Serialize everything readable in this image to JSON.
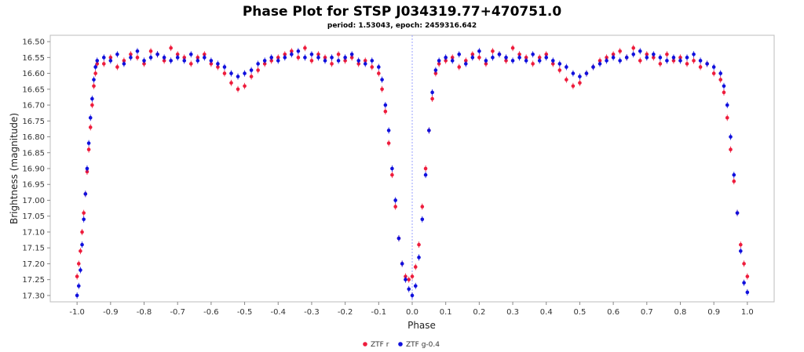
{
  "chart_data": {
    "type": "scatter",
    "title": "Phase Plot for STSP J034319.77+470751.0",
    "subtitle": "period: 1.53043, epoch: 2459316.642",
    "xlabel": "Phase",
    "ylabel": "Brightness (magnitude)",
    "xlim": [
      -1.08,
      1.08
    ],
    "ylim": [
      16.48,
      17.32
    ],
    "y_inverted": true,
    "xticks": [
      "-1.0",
      "-0.9",
      "-0.8",
      "-0.7",
      "-0.6",
      "-0.5",
      "-0.4",
      "-0.3",
      "-0.2",
      "-0.1",
      "0.0",
      "0.1",
      "0.2",
      "0.3",
      "0.4",
      "0.5",
      "0.6",
      "0.7",
      "0.8",
      "0.9",
      "1.0"
    ],
    "yticks": [
      "16.50",
      "16.55",
      "16.60",
      "16.65",
      "16.70",
      "16.75",
      "16.80",
      "16.85",
      "16.90",
      "16.95",
      "17.00",
      "17.05",
      "17.10",
      "17.15",
      "17.20",
      "17.25",
      "17.30"
    ],
    "grid": false,
    "reference_line_x": 0.0,
    "legend_position": "bottom-center",
    "series": [
      {
        "name": "ZTF r",
        "color": "#ee1c3c",
        "points": [
          [
            -1.0,
            17.24
          ],
          [
            -0.995,
            17.2
          ],
          [
            -0.99,
            17.16
          ],
          [
            -0.985,
            17.1
          ],
          [
            -0.98,
            17.04
          ],
          [
            -0.975,
            16.98
          ],
          [
            -0.97,
            16.91
          ],
          [
            -0.965,
            16.84
          ],
          [
            -0.96,
            16.77
          ],
          [
            -0.955,
            16.7
          ],
          [
            -0.95,
            16.64
          ],
          [
            -0.945,
            16.6
          ],
          [
            -0.94,
            16.57
          ],
          [
            -0.92,
            16.57
          ],
          [
            -0.9,
            16.55
          ],
          [
            -0.88,
            16.58
          ],
          [
            -0.86,
            16.56
          ],
          [
            -0.84,
            16.54
          ],
          [
            -0.82,
            16.55
          ],
          [
            -0.8,
            16.57
          ],
          [
            -0.78,
            16.53
          ],
          [
            -0.76,
            16.54
          ],
          [
            -0.74,
            16.56
          ],
          [
            -0.72,
            16.52
          ],
          [
            -0.7,
            16.54
          ],
          [
            -0.68,
            16.55
          ],
          [
            -0.66,
            16.57
          ],
          [
            -0.64,
            16.55
          ],
          [
            -0.62,
            16.54
          ],
          [
            -0.6,
            16.57
          ],
          [
            -0.58,
            16.58
          ],
          [
            -0.56,
            16.6
          ],
          [
            -0.54,
            16.63
          ],
          [
            -0.52,
            16.65
          ],
          [
            -0.5,
            16.64
          ],
          [
            -0.48,
            16.61
          ],
          [
            -0.46,
            16.59
          ],
          [
            -0.44,
            16.57
          ],
          [
            -0.42,
            16.56
          ],
          [
            -0.4,
            16.55
          ],
          [
            -0.38,
            16.54
          ],
          [
            -0.36,
            16.53
          ],
          [
            -0.34,
            16.55
          ],
          [
            -0.32,
            16.52
          ],
          [
            -0.3,
            16.56
          ],
          [
            -0.28,
            16.54
          ],
          [
            -0.26,
            16.55
          ],
          [
            -0.24,
            16.57
          ],
          [
            -0.22,
            16.54
          ],
          [
            -0.2,
            16.56
          ],
          [
            -0.18,
            16.55
          ],
          [
            -0.16,
            16.57
          ],
          [
            -0.14,
            16.56
          ],
          [
            -0.12,
            16.58
          ],
          [
            -0.1,
            16.6
          ],
          [
            -0.09,
            16.65
          ],
          [
            -0.08,
            16.72
          ],
          [
            -0.07,
            16.82
          ],
          [
            -0.06,
            16.92
          ],
          [
            -0.05,
            17.02
          ],
          [
            -0.04,
            17.12
          ],
          [
            -0.03,
            17.2
          ],
          [
            -0.02,
            17.24
          ],
          [
            -0.01,
            17.25
          ],
          [
            0.0,
            17.24
          ],
          [
            0.01,
            17.21
          ],
          [
            0.02,
            17.14
          ],
          [
            0.03,
            17.02
          ],
          [
            0.04,
            16.9
          ],
          [
            0.05,
            16.78
          ],
          [
            0.06,
            16.68
          ],
          [
            0.07,
            16.6
          ],
          [
            0.08,
            16.57
          ],
          [
            0.1,
            16.56
          ],
          [
            0.12,
            16.55
          ],
          [
            0.14,
            16.58
          ],
          [
            0.16,
            16.56
          ],
          [
            0.18,
            16.54
          ],
          [
            0.2,
            16.55
          ],
          [
            0.22,
            16.57
          ],
          [
            0.24,
            16.53
          ],
          [
            0.26,
            16.54
          ],
          [
            0.28,
            16.56
          ],
          [
            0.3,
            16.52
          ],
          [
            0.32,
            16.54
          ],
          [
            0.34,
            16.55
          ],
          [
            0.36,
            16.57
          ],
          [
            0.38,
            16.55
          ],
          [
            0.4,
            16.54
          ],
          [
            0.42,
            16.57
          ],
          [
            0.44,
            16.59
          ],
          [
            0.46,
            16.62
          ],
          [
            0.48,
            16.64
          ],
          [
            0.5,
            16.63
          ],
          [
            0.52,
            16.6
          ],
          [
            0.54,
            16.58
          ],
          [
            0.56,
            16.56
          ],
          [
            0.58,
            16.55
          ],
          [
            0.6,
            16.54
          ],
          [
            0.62,
            16.53
          ],
          [
            0.64,
            16.55
          ],
          [
            0.66,
            16.52
          ],
          [
            0.68,
            16.56
          ],
          [
            0.7,
            16.54
          ],
          [
            0.72,
            16.55
          ],
          [
            0.74,
            16.57
          ],
          [
            0.76,
            16.54
          ],
          [
            0.78,
            16.56
          ],
          [
            0.8,
            16.55
          ],
          [
            0.82,
            16.57
          ],
          [
            0.84,
            16.56
          ],
          [
            0.86,
            16.58
          ],
          [
            0.88,
            16.57
          ],
          [
            0.9,
            16.6
          ],
          [
            0.92,
            16.62
          ],
          [
            0.93,
            16.66
          ],
          [
            0.94,
            16.74
          ],
          [
            0.95,
            16.84
          ],
          [
            0.96,
            16.94
          ],
          [
            0.97,
            17.04
          ],
          [
            0.98,
            17.14
          ],
          [
            0.99,
            17.2
          ],
          [
            1.0,
            17.24
          ]
        ]
      },
      {
        "name": "ZTF g-0.4",
        "color": "#1010dd",
        "points": [
          [
            -1.0,
            17.3
          ],
          [
            -0.995,
            17.27
          ],
          [
            -0.99,
            17.22
          ],
          [
            -0.985,
            17.14
          ],
          [
            -0.98,
            17.06
          ],
          [
            -0.975,
            16.98
          ],
          [
            -0.97,
            16.9
          ],
          [
            -0.965,
            16.82
          ],
          [
            -0.96,
            16.74
          ],
          [
            -0.955,
            16.68
          ],
          [
            -0.95,
            16.62
          ],
          [
            -0.945,
            16.58
          ],
          [
            -0.94,
            16.56
          ],
          [
            -0.92,
            16.55
          ],
          [
            -0.9,
            16.56
          ],
          [
            -0.88,
            16.54
          ],
          [
            -0.86,
            16.57
          ],
          [
            -0.84,
            16.55
          ],
          [
            -0.82,
            16.53
          ],
          [
            -0.8,
            16.56
          ],
          [
            -0.78,
            16.55
          ],
          [
            -0.76,
            16.54
          ],
          [
            -0.74,
            16.55
          ],
          [
            -0.72,
            16.56
          ],
          [
            -0.7,
            16.55
          ],
          [
            -0.68,
            16.56
          ],
          [
            -0.66,
            16.54
          ],
          [
            -0.64,
            16.56
          ],
          [
            -0.62,
            16.55
          ],
          [
            -0.6,
            16.56
          ],
          [
            -0.58,
            16.57
          ],
          [
            -0.56,
            16.58
          ],
          [
            -0.54,
            16.6
          ],
          [
            -0.52,
            16.61
          ],
          [
            -0.5,
            16.6
          ],
          [
            -0.48,
            16.59
          ],
          [
            -0.46,
            16.57
          ],
          [
            -0.44,
            16.56
          ],
          [
            -0.42,
            16.55
          ],
          [
            -0.4,
            16.56
          ],
          [
            -0.38,
            16.55
          ],
          [
            -0.36,
            16.54
          ],
          [
            -0.34,
            16.53
          ],
          [
            -0.32,
            16.55
          ],
          [
            -0.3,
            16.54
          ],
          [
            -0.28,
            16.55
          ],
          [
            -0.26,
            16.56
          ],
          [
            -0.24,
            16.55
          ],
          [
            -0.22,
            16.56
          ],
          [
            -0.2,
            16.55
          ],
          [
            -0.18,
            16.54
          ],
          [
            -0.16,
            16.56
          ],
          [
            -0.14,
            16.57
          ],
          [
            -0.12,
            16.56
          ],
          [
            -0.1,
            16.58
          ],
          [
            -0.09,
            16.62
          ],
          [
            -0.08,
            16.7
          ],
          [
            -0.07,
            16.78
          ],
          [
            -0.06,
            16.9
          ],
          [
            -0.05,
            17.0
          ],
          [
            -0.04,
            17.12
          ],
          [
            -0.03,
            17.2
          ],
          [
            -0.02,
            17.25
          ],
          [
            -0.01,
            17.28
          ],
          [
            0.0,
            17.3
          ],
          [
            0.01,
            17.27
          ],
          [
            0.02,
            17.18
          ],
          [
            0.03,
            17.06
          ],
          [
            0.04,
            16.92
          ],
          [
            0.05,
            16.78
          ],
          [
            0.06,
            16.66
          ],
          [
            0.07,
            16.59
          ],
          [
            0.08,
            16.56
          ],
          [
            0.1,
            16.55
          ],
          [
            0.12,
            16.56
          ],
          [
            0.14,
            16.54
          ],
          [
            0.16,
            16.57
          ],
          [
            0.18,
            16.55
          ],
          [
            0.2,
            16.53
          ],
          [
            0.22,
            16.56
          ],
          [
            0.24,
            16.55
          ],
          [
            0.26,
            16.54
          ],
          [
            0.28,
            16.55
          ],
          [
            0.3,
            16.56
          ],
          [
            0.32,
            16.55
          ],
          [
            0.34,
            16.56
          ],
          [
            0.36,
            16.54
          ],
          [
            0.38,
            16.56
          ],
          [
            0.4,
            16.55
          ],
          [
            0.42,
            16.56
          ],
          [
            0.44,
            16.57
          ],
          [
            0.46,
            16.58
          ],
          [
            0.48,
            16.6
          ],
          [
            0.5,
            16.61
          ],
          [
            0.52,
            16.6
          ],
          [
            0.54,
            16.58
          ],
          [
            0.56,
            16.57
          ],
          [
            0.58,
            16.56
          ],
          [
            0.6,
            16.55
          ],
          [
            0.62,
            16.56
          ],
          [
            0.64,
            16.55
          ],
          [
            0.66,
            16.54
          ],
          [
            0.68,
            16.53
          ],
          [
            0.7,
            16.55
          ],
          [
            0.72,
            16.54
          ],
          [
            0.74,
            16.55
          ],
          [
            0.76,
            16.56
          ],
          [
            0.78,
            16.55
          ],
          [
            0.8,
            16.56
          ],
          [
            0.82,
            16.55
          ],
          [
            0.84,
            16.54
          ],
          [
            0.86,
            16.56
          ],
          [
            0.88,
            16.57
          ],
          [
            0.9,
            16.58
          ],
          [
            0.92,
            16.6
          ],
          [
            0.93,
            16.64
          ],
          [
            0.94,
            16.7
          ],
          [
            0.95,
            16.8
          ],
          [
            0.96,
            16.92
          ],
          [
            0.97,
            17.04
          ],
          [
            0.98,
            17.16
          ],
          [
            0.99,
            17.26
          ],
          [
            1.0,
            17.29
          ]
        ]
      }
    ]
  }
}
